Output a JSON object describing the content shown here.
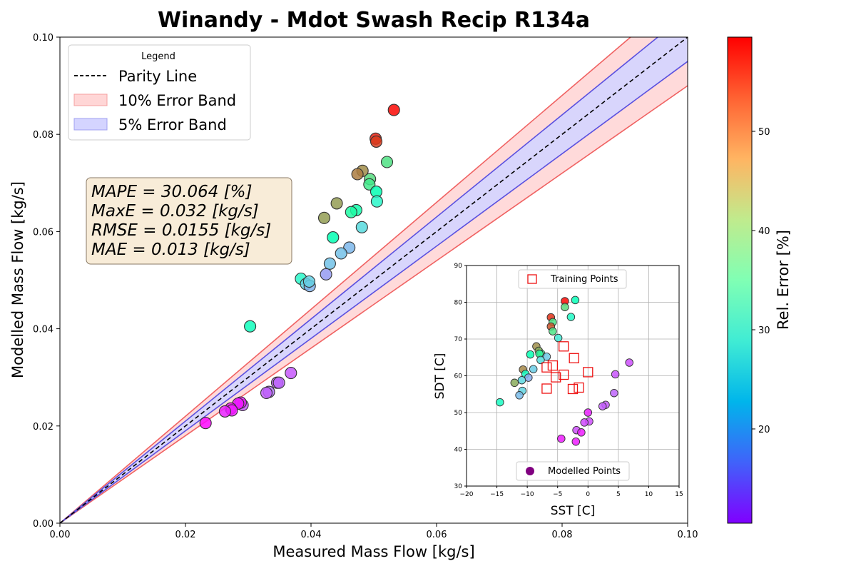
{
  "chart_data": [
    {
      "type": "scatter",
      "title": "Winandy - Mdot Swash Recip R134a",
      "xlabel": "Measured Mass Flow [kg/s]",
      "ylabel": "Modelled Mass Flow [kg/s]",
      "xlim": [
        0,
        0.1
      ],
      "ylim": [
        0,
        0.1
      ],
      "xticks": [
        "0.00",
        "0.02",
        "0.04",
        "0.06",
        "0.08",
        "0.10"
      ],
      "yticks": [
        "0.00",
        "0.02",
        "0.04",
        "0.06",
        "0.08",
        "0.10"
      ],
      "grid": false,
      "legend": {
        "title": "Legend",
        "placement": "top-left",
        "entries": [
          "Parity Line",
          "10% Error Band",
          "5% Error Band"
        ]
      },
      "bands": [
        {
          "name": "10% Error Band",
          "fraction": 0.1,
          "fill": "#ffd6d6",
          "edge": "#f06262"
        },
        {
          "name": "5% Error Band",
          "fraction": 0.05,
          "fill": "#d4d4ff",
          "edge": "#5a50e0"
        }
      ],
      "stats": {
        "lines": [
          "MAPE = 30.064 [%]",
          "MaxE = 0.032 [kg/s]",
          "RMSE = 0.0155 [kg/s]",
          "MAE = 0.013 [kg/s]"
        ]
      },
      "colorbar": {
        "label": "Rel. Error [%]",
        "range": [
          10.5,
          59.5
        ],
        "ticks": [
          20,
          30,
          40,
          50
        ]
      },
      "points": [
        {
          "x": 0.0532,
          "y": 0.085,
          "err": 59.0
        },
        {
          "x": 0.0503,
          "y": 0.0791,
          "err": 57.5
        },
        {
          "x": 0.0504,
          "y": 0.0785,
          "err": 55.8
        },
        {
          "x": 0.0482,
          "y": 0.0725,
          "err": 50.4
        },
        {
          "x": 0.0474,
          "y": 0.0718,
          "err": 51.5
        },
        {
          "x": 0.0441,
          "y": 0.0658,
          "err": 49.2
        },
        {
          "x": 0.0421,
          "y": 0.0628,
          "err": 49.1
        },
        {
          "x": 0.0521,
          "y": 0.0743,
          "err": 42.6
        },
        {
          "x": 0.0494,
          "y": 0.0708,
          "err": 43.3
        },
        {
          "x": 0.0493,
          "y": 0.0697,
          "err": 41.4
        },
        {
          "x": 0.0504,
          "y": 0.0682,
          "err": 35.3
        },
        {
          "x": 0.0505,
          "y": 0.0662,
          "err": 31.1
        },
        {
          "x": 0.0472,
          "y": 0.0644,
          "err": 36.4
        },
        {
          "x": 0.0464,
          "y": 0.064,
          "err": 37.9
        },
        {
          "x": 0.0435,
          "y": 0.0588,
          "err": 35.2
        },
        {
          "x": 0.0481,
          "y": 0.0609,
          "err": 26.6
        },
        {
          "x": 0.0461,
          "y": 0.0567,
          "err": 23.0
        },
        {
          "x": 0.0448,
          "y": 0.0555,
          "err": 23.9
        },
        {
          "x": 0.043,
          "y": 0.0534,
          "err": 24.0
        },
        {
          "x": 0.0424,
          "y": 0.0512,
          "err": 20.7
        },
        {
          "x": 0.0384,
          "y": 0.0503,
          "err": 31.1
        },
        {
          "x": 0.0392,
          "y": 0.0492,
          "err": 25.5
        },
        {
          "x": 0.0398,
          "y": 0.0488,
          "err": 22.6
        },
        {
          "x": 0.0397,
          "y": 0.0497,
          "err": 25.3
        },
        {
          "x": 0.0303,
          "y": 0.0405,
          "err": 33.6
        },
        {
          "x": 0.0368,
          "y": 0.0309,
          "err": 16.0
        },
        {
          "x": 0.0346,
          "y": 0.0289,
          "err": 16.5
        },
        {
          "x": 0.0349,
          "y": 0.0289,
          "err": 16.9
        },
        {
          "x": 0.0333,
          "y": 0.027,
          "err": 17.9
        },
        {
          "x": 0.0329,
          "y": 0.0268,
          "err": 16.5
        },
        {
          "x": 0.0291,
          "y": 0.0243,
          "err": 15.9
        },
        {
          "x": 0.0288,
          "y": 0.0248,
          "err": 12.3
        },
        {
          "x": 0.0284,
          "y": 0.0246,
          "err": 12.0
        },
        {
          "x": 0.0272,
          "y": 0.0236,
          "err": 11.5
        },
        {
          "x": 0.0274,
          "y": 0.0232,
          "err": 12.1
        },
        {
          "x": 0.0263,
          "y": 0.023,
          "err": 12.6
        },
        {
          "x": 0.0232,
          "y": 0.0206,
          "err": 10.9
        }
      ]
    },
    {
      "type": "scatter",
      "xlabel": "SST [C]",
      "ylabel": "SDT [C]",
      "xlim": [
        -20,
        15
      ],
      "ylim": [
        30,
        90
      ],
      "xticks": [
        "−20",
        "−15",
        "−10",
        "−5",
        "0",
        "5",
        "10",
        "15"
      ],
      "yticks": [
        "30",
        "40",
        "50",
        "60",
        "70",
        "80",
        "90"
      ],
      "grid": true,
      "legend_training": "Training Points",
      "legend_modelled": "Modelled Points",
      "training_points": [
        {
          "x": -4.0,
          "y": 68.0
        },
        {
          "x": -2.3,
          "y": 64.8
        },
        {
          "x": -5.8,
          "y": 62.8
        },
        {
          "x": -6.8,
          "y": 62.3
        },
        {
          "x": -4.0,
          "y": 60.3
        },
        {
          "x": -5.3,
          "y": 59.6
        },
        {
          "x": 0.0,
          "y": 61.0
        },
        {
          "x": -6.8,
          "y": 56.5
        },
        {
          "x": -2.5,
          "y": 56.4
        },
        {
          "x": -1.5,
          "y": 56.8
        }
      ],
      "modelled_points": [
        {
          "x": -3.8,
          "y": 80.3,
          "err": 59.0
        },
        {
          "x": -2.1,
          "y": 80.6,
          "err": 34.1
        },
        {
          "x": -3.8,
          "y": 78.7,
          "err": 43.8
        },
        {
          "x": -6.1,
          "y": 75.9,
          "err": 56.5
        },
        {
          "x": -2.8,
          "y": 76.0,
          "err": 31.9
        },
        {
          "x": -5.8,
          "y": 74.6,
          "err": 42.5
        },
        {
          "x": -6.1,
          "y": 73.4,
          "err": 54.3
        },
        {
          "x": -5.8,
          "y": 72.1,
          "err": 42.3
        },
        {
          "x": -4.9,
          "y": 70.3,
          "err": 28.7
        },
        {
          "x": -8.5,
          "y": 68.0,
          "err": 50.3
        },
        {
          "x": -8.1,
          "y": 66.8,
          "err": 47.8
        },
        {
          "x": -7.7,
          "y": 66.0,
          "err": 40.2
        },
        {
          "x": -8.0,
          "y": 66.0,
          "err": 39.4
        },
        {
          "x": -9.5,
          "y": 65.8,
          "err": 35.5
        },
        {
          "x": -6.8,
          "y": 65.2,
          "err": 24.6
        },
        {
          "x": -7.8,
          "y": 64.3,
          "err": 26.8
        },
        {
          "x": -9.0,
          "y": 61.8,
          "err": 24.9
        },
        {
          "x": -10.7,
          "y": 61.7,
          "err": 50.8
        },
        {
          "x": -10.3,
          "y": 60.5,
          "err": 33.1
        },
        {
          "x": -9.8,
          "y": 59.5,
          "err": 22.1
        },
        {
          "x": -10.9,
          "y": 58.8,
          "err": 26.2
        },
        {
          "x": -12.1,
          "y": 58.1,
          "err": 48.1
        },
        {
          "x": -10.8,
          "y": 55.9,
          "err": 25.8
        },
        {
          "x": -11.3,
          "y": 54.7,
          "err": 23.4
        },
        {
          "x": -14.5,
          "y": 52.8,
          "err": 32.6
        },
        {
          "x": 6.8,
          "y": 63.6,
          "err": 15.4
        },
        {
          "x": 4.5,
          "y": 60.4,
          "err": 15.8
        },
        {
          "x": 4.3,
          "y": 55.3,
          "err": 16.8
        },
        {
          "x": 2.9,
          "y": 52.1,
          "err": 16.1
        },
        {
          "x": 2.4,
          "y": 51.7,
          "err": 16.4
        },
        {
          "x": 0.0,
          "y": 50.0,
          "err": 12.6
        },
        {
          "x": 0.2,
          "y": 47.6,
          "err": 15.4
        },
        {
          "x": -0.6,
          "y": 47.3,
          "err": 15.1
        },
        {
          "x": -1.9,
          "y": 45.2,
          "err": 15.3
        },
        {
          "x": -1.1,
          "y": 44.6,
          "err": 12.2
        },
        {
          "x": -4.4,
          "y": 42.9,
          "err": 12.2
        },
        {
          "x": -2.0,
          "y": 42.1,
          "err": 12.2
        }
      ]
    }
  ]
}
